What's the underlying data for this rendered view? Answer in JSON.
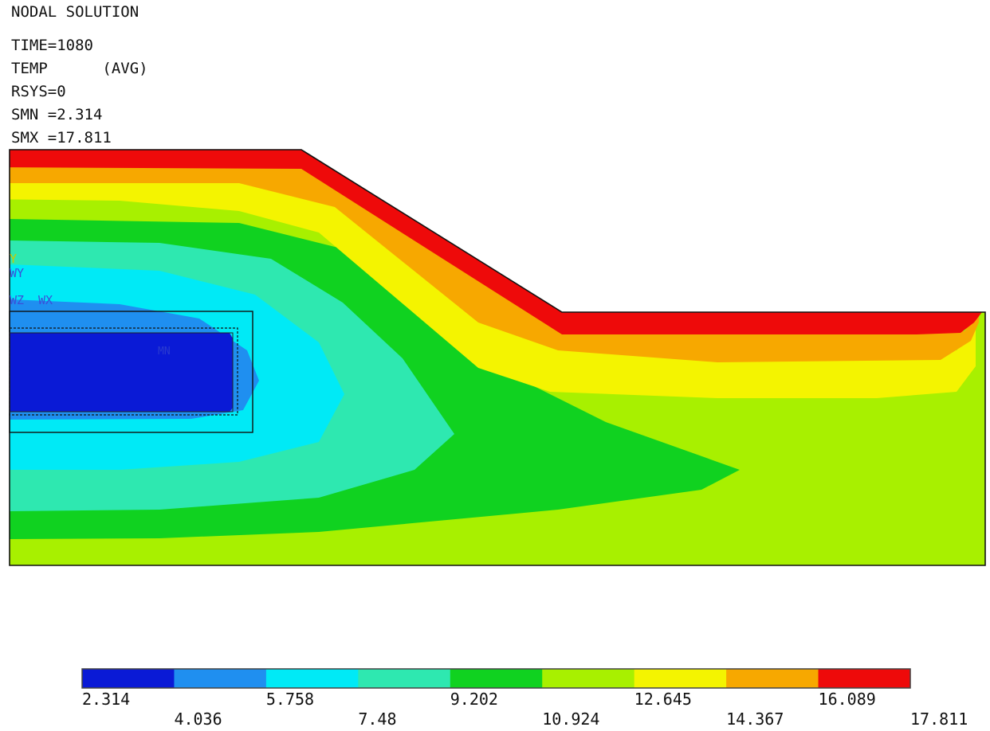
{
  "header": {
    "title": "NODAL SOLUTION",
    "time": "TIME=1080",
    "result": "TEMP      (AVG)",
    "rsys": "RSYS=0",
    "smn": "SMN =2.314",
    "smx": "SMX =17.811"
  },
  "triad": {
    "wy": "WY",
    "wz": "WZ",
    "wx": "WX",
    "y": "Y"
  },
  "min_marker": "MN",
  "legend": {
    "colors": [
      "#0a1ad6",
      "#1f8ff0",
      "#00eaf6",
      "#2ee8b0",
      "#10d220",
      "#a8f000",
      "#f4f400",
      "#f7a800",
      "#ee0a0a"
    ],
    "levels": [
      "2.314",
      "4.036",
      "5.758",
      "7.48",
      "9.202",
      "10.924",
      "12.645",
      "14.367",
      "16.089",
      "17.811"
    ]
  }
}
